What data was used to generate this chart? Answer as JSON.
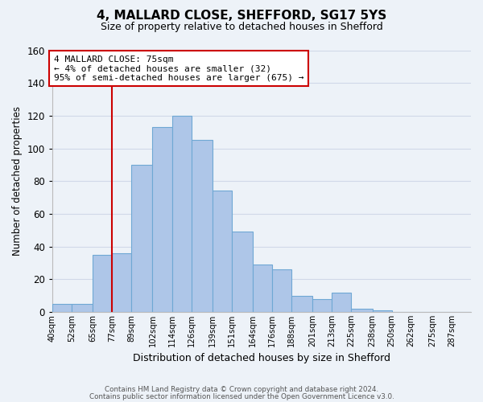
{
  "title1": "4, MALLARD CLOSE, SHEFFORD, SG17 5YS",
  "title2": "Size of property relative to detached houses in Shefford",
  "xlabel": "Distribution of detached houses by size in Shefford",
  "ylabel": "Number of detached properties",
  "footnote1": "Contains HM Land Registry data © Crown copyright and database right 2024.",
  "footnote2": "Contains public sector information licensed under the Open Government Licence v3.0.",
  "annotation_line1": "4 MALLARD CLOSE: 75sqm",
  "annotation_line2": "← 4% of detached houses are smaller (32)",
  "annotation_line3": "95% of semi-detached houses are larger (675) →",
  "bin_labels": [
    "40sqm",
    "52sqm",
    "65sqm",
    "77sqm",
    "89sqm",
    "102sqm",
    "114sqm",
    "126sqm",
    "139sqm",
    "151sqm",
    "164sqm",
    "176sqm",
    "188sqm",
    "201sqm",
    "213sqm",
    "225sqm",
    "238sqm",
    "250sqm",
    "262sqm",
    "275sqm",
    "287sqm"
  ],
  "bar_heights": [
    5,
    5,
    35,
    36,
    90,
    113,
    120,
    105,
    74,
    49,
    29,
    26,
    10,
    8,
    12,
    2,
    1,
    0,
    0,
    0,
    0
  ],
  "bin_edges": [
    40,
    52,
    65,
    77,
    89,
    102,
    114,
    126,
    139,
    151,
    164,
    176,
    188,
    201,
    213,
    225,
    238,
    250,
    262,
    275,
    287,
    299
  ],
  "bar_color": "#aec6e8",
  "bar_edge_color": "#6fa8d4",
  "redline_x": 77,
  "ylim": [
    0,
    160
  ],
  "yticks": [
    0,
    20,
    40,
    60,
    80,
    100,
    120,
    140,
    160
  ],
  "annotation_box_color": "#ffffff",
  "annotation_box_edge": "#cc0000",
  "redline_color": "#cc0000",
  "grid_color": "#d0d8e8",
  "bg_color": "#edf2f8",
  "title1_fontsize": 11,
  "title2_fontsize": 9
}
